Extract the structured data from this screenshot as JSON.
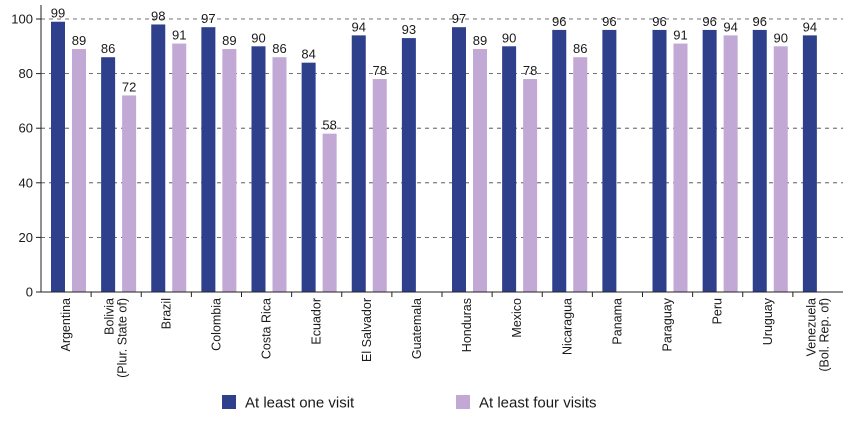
{
  "chart_data": {
    "type": "bar",
    "categories": [
      [
        "Argentina"
      ],
      [
        "Bolivia",
        "(Plur. State of)"
      ],
      [
        "Brazil"
      ],
      [
        "Colombia"
      ],
      [
        "Costa Rica"
      ],
      [
        "Ecuador"
      ],
      [
        "El Salvador"
      ],
      [
        "Guatemala"
      ],
      [
        "Honduras"
      ],
      [
        "Mexico"
      ],
      [
        "Nicaragua"
      ],
      [
        "Panama"
      ],
      [
        "Paraguay"
      ],
      [
        "Peru"
      ],
      [
        "Uruguay"
      ],
      [
        "Venezuela",
        "(Bol. Rep. of)"
      ]
    ],
    "series": [
      {
        "name": "At least one visit",
        "color": "#2e3f8c",
        "values": [
          99,
          86,
          98,
          97,
          90,
          84,
          94,
          93,
          97,
          90,
          96,
          96,
          96,
          96,
          96,
          94
        ],
        "labels": [
          "99",
          "86",
          "98",
          "97",
          "90",
          "84",
          "94",
          "93",
          "97",
          "90",
          "96",
          "96",
          "96",
          "96",
          "96",
          "94"
        ]
      },
      {
        "name": "At least four visits",
        "color": "#c2a8d4",
        "values": [
          89,
          72,
          91,
          89,
          86,
          58,
          78,
          null,
          89,
          78,
          86,
          null,
          91,
          94,
          90,
          null
        ],
        "labels": [
          "89",
          "72",
          "91",
          "89",
          "86",
          "58",
          "78",
          "",
          "89",
          "78",
          "86",
          "",
          "91",
          "94",
          "90",
          ""
        ]
      }
    ],
    "yticks": [
      "0",
      "20",
      "40",
      "60",
      "80",
      "100"
    ],
    "ylim": [
      0,
      100
    ],
    "grid": "horizontal-dashed",
    "legend": "bottom"
  }
}
